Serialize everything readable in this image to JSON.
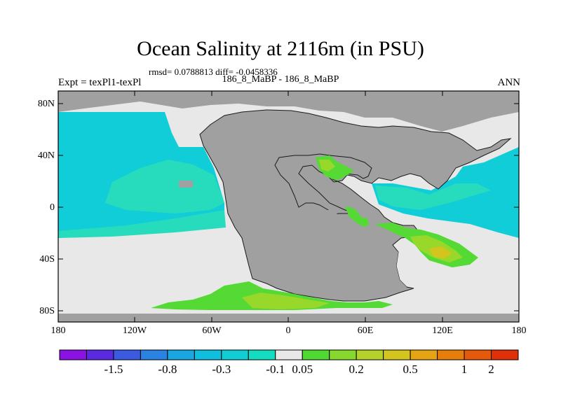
{
  "title": "Ocean Salinity at 2116m (in PSU)",
  "stats_line": "rmsd= 0.0788813 diff= -0.0458336",
  "comparison": "186_8_MaBP - 186_8_MaBP",
  "left_string": "Expt = texPl1-texPl",
  "right_string": "ANN",
  "map": {
    "lat_labels": [
      "80N",
      "40N",
      "0",
      "40S",
      "80S"
    ],
    "lon_labels": [
      "180",
      "120W",
      "60W",
      "0",
      "60E",
      "120E",
      "180"
    ]
  },
  "colorbar": {
    "colors": [
      "#8a12e2",
      "#5a2ae0",
      "#3a5ae0",
      "#2a82e2",
      "#1aa6e0",
      "#10bede",
      "#12cdd4",
      "#14dcc0",
      "#e8e8e8",
      "#52d832",
      "#86d82e",
      "#b4d22a",
      "#d4c41e",
      "#e6a414",
      "#e67e0c",
      "#e45a0a",
      "#e0300a"
    ],
    "labels": [
      "-1.5",
      "-0.8",
      "-0.3",
      "-0.1",
      "0.05",
      "0.2",
      "0.5",
      "1",
      "2"
    ],
    "label_boundaries": [
      2,
      4,
      6,
      8,
      9,
      11,
      13,
      15,
      16
    ]
  },
  "legend_colors": {
    "land": "#a0a0a0",
    "near_zero": "#e8e8e8",
    "fresh_cyan": "#10cdd8",
    "fresh_teal": "#26dcbc",
    "salty_green": "#55d934",
    "salty_lime": "#98d82a",
    "salty_yellow": "#d4c41e"
  }
}
